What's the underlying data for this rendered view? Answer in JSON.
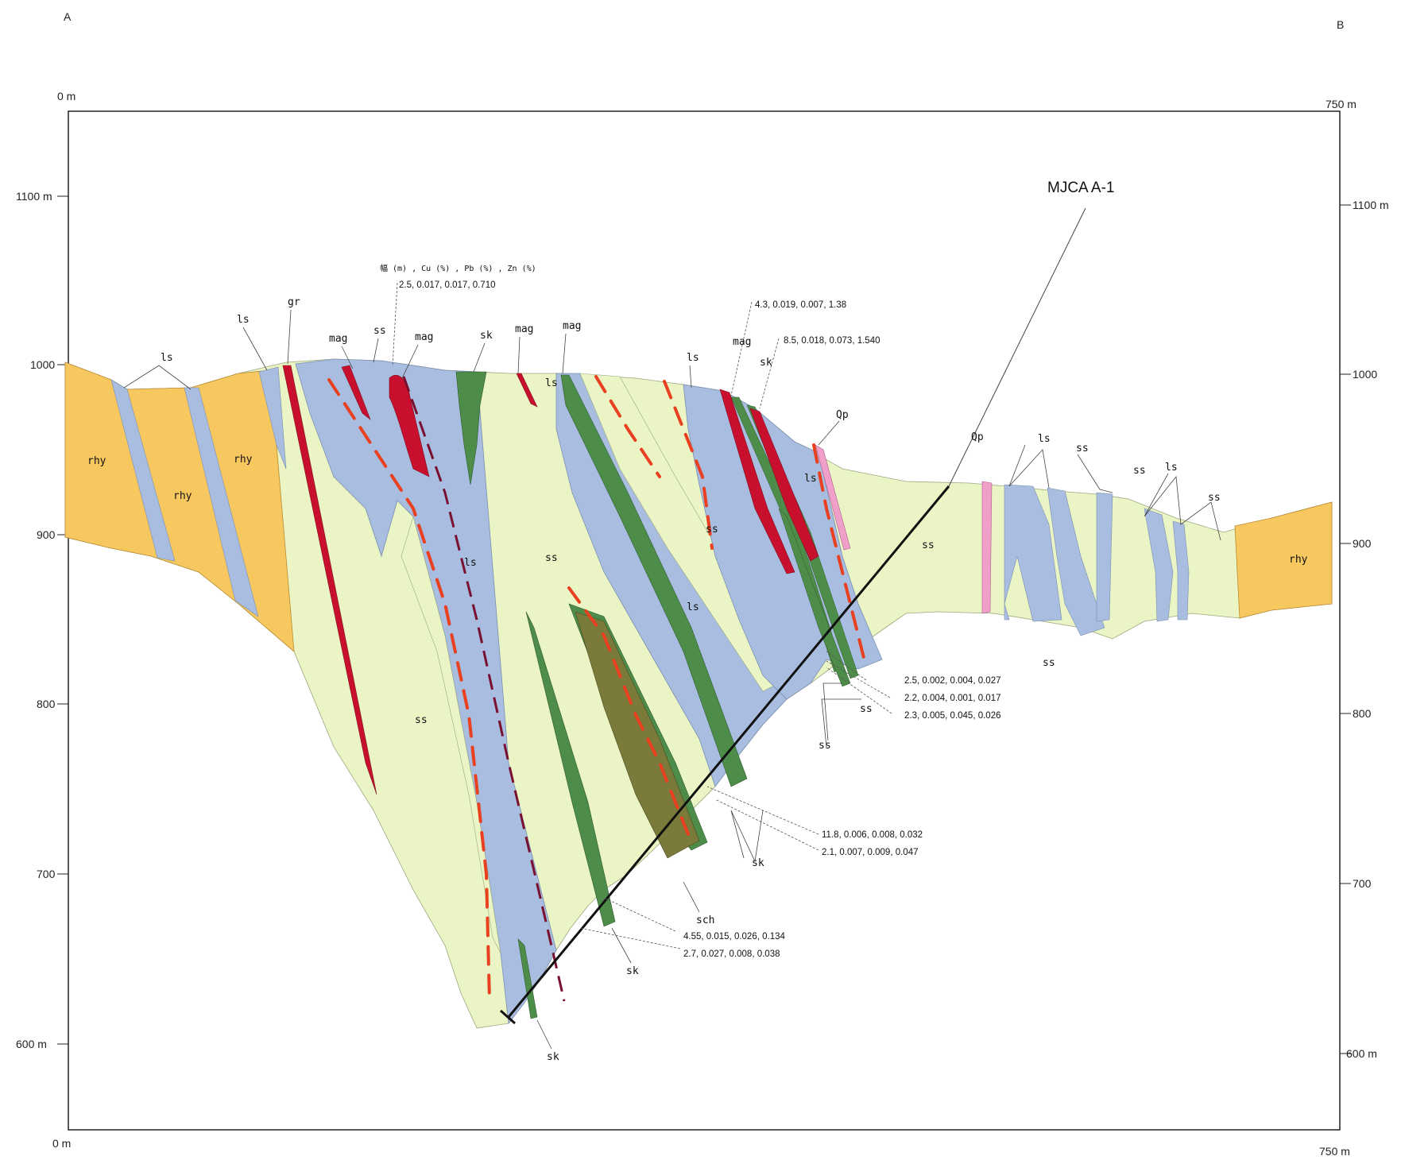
{
  "corners": {
    "left": "A",
    "right": "B"
  },
  "axis": {
    "left_top": "0 m",
    "left_bottom": "0 m",
    "right_top": "750 m",
    "right_bottom": "750 m",
    "left_ticks": [
      "1100 m",
      "1000",
      "900",
      "800",
      "700",
      "600 m"
    ],
    "right_ticks": [
      "1100 m",
      "1000",
      "900",
      "800",
      "700",
      "600 m"
    ]
  },
  "drillhole": {
    "name": "MJCA A-1"
  },
  "assay_header": "幅 (m) , Cu (%) , Pb (%) , Zn (%)",
  "assays": [
    "2.5, 0.017, 0.017, 0.710",
    "4.3, 0.019, 0.007, 1.38",
    "8.5, 0.018, 0.073, 1.540",
    "2.5, 0.002, 0.004, 0.027",
    "2.2, 0.004, 0.001, 0.017",
    "2.3, 0.005, 0.045, 0.026",
    "11.8, 0.006, 0.008, 0.032",
    "2.1, 0.007, 0.009, 0.047",
    "4.55, 0.015, 0.026, 0.134",
    "2.7, 0.027, 0.008, 0.038"
  ],
  "labels": {
    "ls": "ls",
    "gr": "gr",
    "mag": "mag",
    "ss": "ss",
    "sk": "sk",
    "rhy": "rhy",
    "Qp": "Qp",
    "sch": "sch"
  },
  "colors": {
    "rhyolite": "#f8c860",
    "limestone": "#a8bde0",
    "sandstone": "#eaf4c4",
    "skarn": "#4e8c4a",
    "magnetite": "#c8102e",
    "schist": "#7a7a3a",
    "quartz_porphyry": "#f0a0c8",
    "fault": "#e84020",
    "dashed_fault": "#7a1030"
  }
}
